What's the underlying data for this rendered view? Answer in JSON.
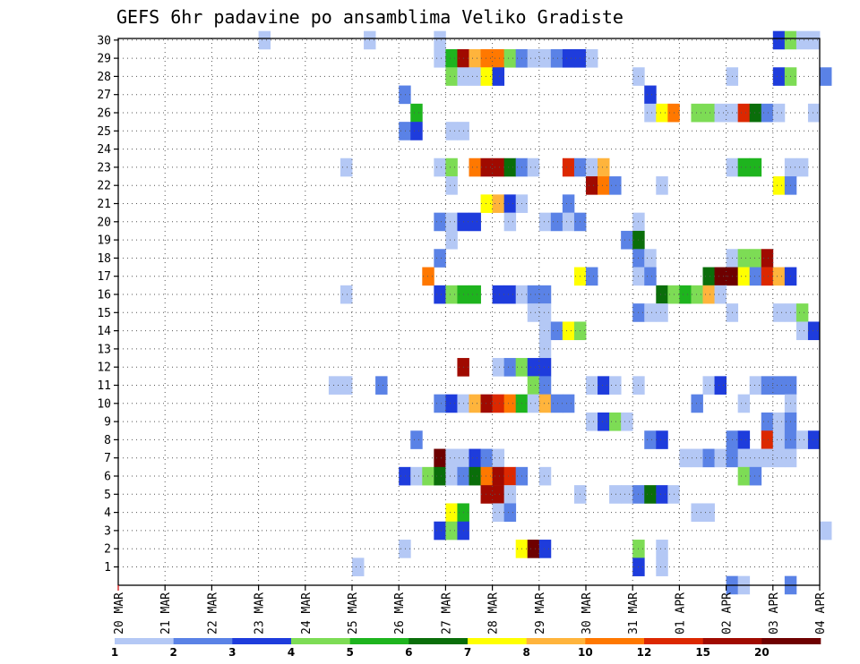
{
  "chart_data": {
    "type": "heatmap",
    "title": "GEFS 6hr padavine po ansamblima Veliko Gradiste",
    "x_tick_labels": [
      "20 MAR",
      "21 MAR",
      "22 MAR",
      "23 MAR",
      "24 MAR",
      "25 MAR",
      "26 MAR",
      "27 MAR",
      "28 MAR",
      "29 MAR",
      "30 MAR",
      "31 MAR",
      "01 APR",
      "02 APR",
      "03 APR",
      "04 APR"
    ],
    "x_range": [
      "20 MAR 00Z",
      "04 APR 00Z"
    ],
    "time_step_hours": 6,
    "y_tick_labels": [
      "1",
      "2",
      "3",
      "4",
      "5",
      "6",
      "7",
      "8",
      "9",
      "10",
      "11",
      "12",
      "13",
      "14",
      "15",
      "16",
      "17",
      "18",
      "19",
      "20",
      "21",
      "22",
      "23",
      "24",
      "25",
      "26",
      "27",
      "28",
      "29",
      "30"
    ],
    "y_range": [
      1,
      30
    ],
    "grid": "dotted",
    "legend": {
      "placement": "bottom",
      "labels": [
        "1",
        "2",
        "3",
        "4",
        "5",
        "6",
        "7",
        "8",
        "10",
        "12",
        "15",
        "20"
      ],
      "colors": [
        "#b4c8f5",
        "#5a82e6",
        "#1e3cdc",
        "#7ddc55",
        "#1eb41e",
        "#0a6e0a",
        "#ffff00",
        "#ffb43c",
        "#ff7800",
        "#dc2800",
        "#a00a00",
        "#6e0000"
      ]
    },
    "cells": [
      [
        30,
        "23 MAR",
        0,
        0
      ],
      [
        30,
        "25 MAR",
        1,
        0
      ],
      [
        30,
        "26 MAR",
        3,
        0
      ],
      [
        30,
        "03 APR",
        0,
        2
      ],
      [
        30,
        "03 APR",
        1,
        3
      ],
      [
        30,
        "03 APR",
        2,
        0
      ],
      [
        30,
        "03 APR",
        3,
        0
      ],
      [
        29,
        "26 MAR",
        3,
        0
      ],
      [
        29,
        "27 MAR",
        0,
        4
      ],
      [
        29,
        "27 MAR",
        1,
        10
      ],
      [
        29,
        "27 MAR",
        2,
        7
      ],
      [
        29,
        "27 MAR",
        3,
        8
      ],
      [
        29,
        "28 MAR",
        0,
        8
      ],
      [
        29,
        "28 MAR",
        1,
        3
      ],
      [
        29,
        "28 MAR",
        2,
        1
      ],
      [
        29,
        "28 MAR",
        3,
        0
      ],
      [
        29,
        "29 MAR",
        0,
        0
      ],
      [
        29,
        "29 MAR",
        1,
        1
      ],
      [
        29,
        "29 MAR",
        2,
        2
      ],
      [
        29,
        "29 MAR",
        3,
        2
      ],
      [
        29,
        "30 MAR",
        0,
        0
      ],
      [
        28,
        "27 MAR",
        0,
        3
      ],
      [
        28,
        "27 MAR",
        1,
        0
      ],
      [
        28,
        "27 MAR",
        2,
        0
      ],
      [
        28,
        "27 MAR",
        3,
        6
      ],
      [
        28,
        "28 MAR",
        0,
        2
      ],
      [
        28,
        "31 MAR",
        0,
        0
      ],
      [
        28,
        "02 APR",
        0,
        0
      ],
      [
        28,
        "03 APR",
        0,
        2
      ],
      [
        28,
        "03 APR",
        1,
        3
      ],
      [
        28,
        "04 APR",
        0,
        1
      ],
      [
        27,
        "26 MAR",
        0,
        1
      ],
      [
        27,
        "31 MAR",
        1,
        2
      ],
      [
        26,
        "26 MAR",
        1,
        4
      ],
      [
        26,
        "31 MAR",
        1,
        0
      ],
      [
        26,
        "31 MAR",
        2,
        6
      ],
      [
        26,
        "31 MAR",
        3,
        8
      ],
      [
        26,
        "01 APR",
        1,
        3
      ],
      [
        26,
        "01 APR",
        2,
        3
      ],
      [
        26,
        "01 APR",
        3,
        0
      ],
      [
        26,
        "02 APR",
        0,
        0
      ],
      [
        26,
        "02 APR",
        1,
        9
      ],
      [
        26,
        "02 APR",
        2,
        5
      ],
      [
        26,
        "02 APR",
        3,
        1
      ],
      [
        26,
        "03 APR",
        0,
        0
      ],
      [
        26,
        "03 APR",
        3,
        0
      ],
      [
        25,
        "26 MAR",
        0,
        1
      ],
      [
        25,
        "26 MAR",
        1,
        2
      ],
      [
        25,
        "27 MAR",
        0,
        0
      ],
      [
        25,
        "27 MAR",
        1,
        0
      ],
      [
        23,
        "24 MAR",
        3,
        0
      ],
      [
        23,
        "26 MAR",
        3,
        0
      ],
      [
        23,
        "27 MAR",
        0,
        3
      ],
      [
        23,
        "27 MAR",
        2,
        8
      ],
      [
        23,
        "27 MAR",
        3,
        10
      ],
      [
        23,
        "28 MAR",
        0,
        10
      ],
      [
        23,
        "28 MAR",
        1,
        5
      ],
      [
        23,
        "28 MAR",
        2,
        1
      ],
      [
        23,
        "28 MAR",
        3,
        0
      ],
      [
        23,
        "29 MAR",
        2,
        9
      ],
      [
        23,
        "29 MAR",
        3,
        1
      ],
      [
        23,
        "30 MAR",
        0,
        0
      ],
      [
        23,
        "30 MAR",
        1,
        7
      ],
      [
        23,
        "02 APR",
        0,
        0
      ],
      [
        23,
        "02 APR",
        1,
        4
      ],
      [
        23,
        "02 APR",
        2,
        4
      ],
      [
        23,
        "03 APR",
        1,
        0
      ],
      [
        23,
        "03 APR",
        2,
        0
      ],
      [
        22,
        "27 MAR",
        0,
        0
      ],
      [
        22,
        "30 MAR",
        0,
        10
      ],
      [
        22,
        "30 MAR",
        1,
        8
      ],
      [
        22,
        "30 MAR",
        2,
        1
      ],
      [
        22,
        "31 MAR",
        2,
        0
      ],
      [
        22,
        "03 APR",
        0,
        6
      ],
      [
        22,
        "03 APR",
        1,
        1
      ],
      [
        21,
        "27 MAR",
        3,
        6
      ],
      [
        21,
        "28 MAR",
        0,
        7
      ],
      [
        21,
        "28 MAR",
        1,
        2
      ],
      [
        21,
        "28 MAR",
        2,
        0
      ],
      [
        21,
        "29 MAR",
        2,
        1
      ],
      [
        20,
        "26 MAR",
        3,
        1
      ],
      [
        20,
        "27 MAR",
        0,
        0
      ],
      [
        20,
        "27 MAR",
        1,
        2
      ],
      [
        20,
        "27 MAR",
        2,
        2
      ],
      [
        20,
        "28 MAR",
        1,
        0
      ],
      [
        20,
        "29 MAR",
        0,
        0
      ],
      [
        20,
        "29 MAR",
        1,
        1
      ],
      [
        20,
        "29 MAR",
        2,
        0
      ],
      [
        20,
        "29 MAR",
        3,
        1
      ],
      [
        20,
        "31 MAR",
        0,
        0
      ],
      [
        19,
        "27 MAR",
        0,
        0
      ],
      [
        19,
        "30 MAR",
        3,
        1
      ],
      [
        19,
        "31 MAR",
        0,
        5
      ],
      [
        18,
        "26 MAR",
        3,
        1
      ],
      [
        18,
        "31 MAR",
        0,
        1
      ],
      [
        18,
        "31 MAR",
        1,
        0
      ],
      [
        18,
        "02 APR",
        0,
        0
      ],
      [
        18,
        "02 APR",
        1,
        3
      ],
      [
        18,
        "02 APR",
        2,
        3
      ],
      [
        18,
        "02 APR",
        3,
        10
      ],
      [
        17,
        "26 MAR",
        2,
        8
      ],
      [
        17,
        "29 MAR",
        3,
        6
      ],
      [
        17,
        "30 MAR",
        0,
        1
      ],
      [
        17,
        "31 MAR",
        0,
        0
      ],
      [
        17,
        "31 MAR",
        1,
        1
      ],
      [
        17,
        "01 APR",
        2,
        5
      ],
      [
        17,
        "01 APR",
        3,
        11
      ],
      [
        17,
        "02 APR",
        0,
        11
      ],
      [
        17,
        "02 APR",
        1,
        6
      ],
      [
        17,
        "02 APR",
        2,
        1
      ],
      [
        17,
        "02 APR",
        3,
        9
      ],
      [
        17,
        "03 APR",
        0,
        7
      ],
      [
        17,
        "03 APR",
        1,
        2
      ],
      [
        16,
        "24 MAR",
        3,
        0
      ],
      [
        16,
        "26 MAR",
        3,
        2
      ],
      [
        16,
        "27 MAR",
        0,
        3
      ],
      [
        16,
        "27 MAR",
        1,
        4
      ],
      [
        16,
        "27 MAR",
        2,
        4
      ],
      [
        16,
        "28 MAR",
        0,
        2
      ],
      [
        16,
        "28 MAR",
        1,
        2
      ],
      [
        16,
        "28 MAR",
        2,
        0
      ],
      [
        16,
        "28 MAR",
        3,
        1
      ],
      [
        16,
        "29 MAR",
        0,
        1
      ],
      [
        16,
        "31 MAR",
        2,
        5
      ],
      [
        16,
        "31 MAR",
        3,
        3
      ],
      [
        16,
        "01 APR",
        0,
        4
      ],
      [
        16,
        "01 APR",
        1,
        3
      ],
      [
        16,
        "01 APR",
        2,
        7
      ],
      [
        16,
        "01 APR",
        3,
        0
      ],
      [
        15,
        "28 MAR",
        3,
        0
      ],
      [
        15,
        "29 MAR",
        0,
        0
      ],
      [
        15,
        "31 MAR",
        0,
        1
      ],
      [
        15,
        "31 MAR",
        1,
        0
      ],
      [
        15,
        "31 MAR",
        2,
        0
      ],
      [
        15,
        "02 APR",
        0,
        0
      ],
      [
        15,
        "03 APR",
        0,
        0
      ],
      [
        15,
        "03 APR",
        1,
        0
      ],
      [
        15,
        "03 APR",
        2,
        3
      ],
      [
        14,
        "29 MAR",
        0,
        0
      ],
      [
        14,
        "29 MAR",
        1,
        1
      ],
      [
        14,
        "29 MAR",
        2,
        6
      ],
      [
        14,
        "29 MAR",
        3,
        3
      ],
      [
        14,
        "03 APR",
        2,
        0
      ],
      [
        14,
        "03 APR",
        3,
        2
      ],
      [
        13,
        "29 MAR",
        0,
        0
      ],
      [
        12,
        "27 MAR",
        1,
        10
      ],
      [
        12,
        "28 MAR",
        0,
        0
      ],
      [
        12,
        "28 MAR",
        1,
        1
      ],
      [
        12,
        "28 MAR",
        2,
        3
      ],
      [
        12,
        "28 MAR",
        3,
        2
      ],
      [
        12,
        "29 MAR",
        0,
        2
      ],
      [
        11,
        "24 MAR",
        2,
        0
      ],
      [
        11,
        "24 MAR",
        3,
        0
      ],
      [
        11,
        "25 MAR",
        2,
        1
      ],
      [
        11,
        "28 MAR",
        3,
        3
      ],
      [
        11,
        "29 MAR",
        0,
        1
      ],
      [
        11,
        "30 MAR",
        0,
        0
      ],
      [
        11,
        "30 MAR",
        1,
        2
      ],
      [
        11,
        "30 MAR",
        2,
        0
      ],
      [
        11,
        "31 MAR",
        0,
        0
      ],
      [
        11,
        "01 APR",
        2,
        0
      ],
      [
        11,
        "01 APR",
        3,
        2
      ],
      [
        11,
        "02 APR",
        2,
        0
      ],
      [
        11,
        "02 APR",
        3,
        1
      ],
      [
        11,
        "03 APR",
        0,
        1
      ],
      [
        11,
        "03 APR",
        1,
        1
      ],
      [
        10,
        "26 MAR",
        3,
        1
      ],
      [
        10,
        "27 MAR",
        0,
        2
      ],
      [
        10,
        "27 MAR",
        1,
        0
      ],
      [
        10,
        "27 MAR",
        2,
        7
      ],
      [
        10,
        "27 MAR",
        3,
        10
      ],
      [
        10,
        "28 MAR",
        0,
        9
      ],
      [
        10,
        "28 MAR",
        1,
        8
      ],
      [
        10,
        "28 MAR",
        2,
        4
      ],
      [
        10,
        "28 MAR",
        3,
        0
      ],
      [
        10,
        "29 MAR",
        0,
        7
      ],
      [
        10,
        "29 MAR",
        1,
        1
      ],
      [
        10,
        "29 MAR",
        2,
        1
      ],
      [
        10,
        "01 APR",
        1,
        1
      ],
      [
        10,
        "02 APR",
        1,
        0
      ],
      [
        10,
        "03 APR",
        1,
        0
      ],
      [
        9,
        "30 MAR",
        0,
        0
      ],
      [
        9,
        "30 MAR",
        1,
        2
      ],
      [
        9,
        "30 MAR",
        2,
        3
      ],
      [
        9,
        "30 MAR",
        3,
        0
      ],
      [
        9,
        "02 APR",
        3,
        1
      ],
      [
        9,
        "03 APR",
        0,
        0
      ],
      [
        9,
        "03 APR",
        1,
        1
      ],
      [
        8,
        "26 MAR",
        1,
        1
      ],
      [
        8,
        "31 MAR",
        1,
        1
      ],
      [
        8,
        "31 MAR",
        2,
        2
      ],
      [
        8,
        "02 APR",
        0,
        1
      ],
      [
        8,
        "02 APR",
        1,
        2
      ],
      [
        8,
        "02 APR",
        3,
        9
      ],
      [
        8,
        "03 APR",
        0,
        0
      ],
      [
        8,
        "03 APR",
        1,
        1
      ],
      [
        8,
        "03 APR",
        2,
        0
      ],
      [
        8,
        "03 APR",
        3,
        2
      ],
      [
        7,
        "26 MAR",
        3,
        11
      ],
      [
        7,
        "27 MAR",
        0,
        0
      ],
      [
        7,
        "27 MAR",
        1,
        0
      ],
      [
        7,
        "27 MAR",
        2,
        2
      ],
      [
        7,
        "27 MAR",
        3,
        1
      ],
      [
        7,
        "28 MAR",
        0,
        0
      ],
      [
        7,
        "01 APR",
        0,
        0
      ],
      [
        7,
        "01 APR",
        1,
        0
      ],
      [
        7,
        "01 APR",
        2,
        1
      ],
      [
        7,
        "01 APR",
        3,
        0
      ],
      [
        7,
        "02 APR",
        0,
        1
      ],
      [
        7,
        "02 APR",
        1,
        0
      ],
      [
        7,
        "02 APR",
        2,
        0
      ],
      [
        7,
        "02 APR",
        3,
        0
      ],
      [
        7,
        "03 APR",
        0,
        0
      ],
      [
        7,
        "03 APR",
        1,
        0
      ],
      [
        6,
        "26 MAR",
        0,
        2
      ],
      [
        6,
        "26 MAR",
        1,
        0
      ],
      [
        6,
        "26 MAR",
        2,
        3
      ],
      [
        6,
        "26 MAR",
        3,
        5
      ],
      [
        6,
        "27 MAR",
        0,
        0
      ],
      [
        6,
        "27 MAR",
        1,
        1
      ],
      [
        6,
        "27 MAR",
        2,
        5
      ],
      [
        6,
        "27 MAR",
        3,
        8
      ],
      [
        6,
        "28 MAR",
        0,
        10
      ],
      [
        6,
        "28 MAR",
        1,
        9
      ],
      [
        6,
        "28 MAR",
        2,
        1
      ],
      [
        6,
        "29 MAR",
        0,
        0
      ],
      [
        6,
        "02 APR",
        1,
        3
      ],
      [
        6,
        "02 APR",
        2,
        1
      ],
      [
        5,
        "27 MAR",
        3,
        10
      ],
      [
        5,
        "28 MAR",
        0,
        10
      ],
      [
        5,
        "28 MAR",
        1,
        0
      ],
      [
        5,
        "29 MAR",
        3,
        0
      ],
      [
        5,
        "30 MAR",
        2,
        0
      ],
      [
        5,
        "30 MAR",
        3,
        0
      ],
      [
        5,
        "31 MAR",
        0,
        1
      ],
      [
        5,
        "31 MAR",
        1,
        5
      ],
      [
        5,
        "31 MAR",
        2,
        2
      ],
      [
        5,
        "31 MAR",
        3,
        0
      ],
      [
        4,
        "27 MAR",
        0,
        6
      ],
      [
        4,
        "27 MAR",
        1,
        4
      ],
      [
        4,
        "28 MAR",
        0,
        0
      ],
      [
        4,
        "28 MAR",
        1,
        1
      ],
      [
        4,
        "01 APR",
        1,
        0
      ],
      [
        4,
        "01 APR",
        2,
        0
      ],
      [
        3,
        "26 MAR",
        3,
        2
      ],
      [
        3,
        "27 MAR",
        0,
        3
      ],
      [
        3,
        "27 MAR",
        1,
        2
      ],
      [
        3,
        "04 APR",
        0,
        0
      ],
      [
        2,
        "26 MAR",
        0,
        0
      ],
      [
        2,
        "28 MAR",
        2,
        6
      ],
      [
        2,
        "28 MAR",
        3,
        11
      ],
      [
        2,
        "29 MAR",
        0,
        2
      ],
      [
        2,
        "31 MAR",
        0,
        3
      ],
      [
        2,
        "31 MAR",
        2,
        0
      ],
      [
        1,
        "25 MAR",
        0,
        0
      ],
      [
        1,
        "31 MAR",
        0,
        2
      ],
      [
        1,
        "31 MAR",
        2,
        0
      ],
      [
        0,
        "02 APR",
        0,
        1
      ],
      [
        0,
        "02 APR",
        1,
        0
      ],
      [
        0,
        "03 APR",
        1,
        1
      ]
    ],
    "cells_format": "[member_row, day, 6h_step_index, legend_color_index]"
  }
}
